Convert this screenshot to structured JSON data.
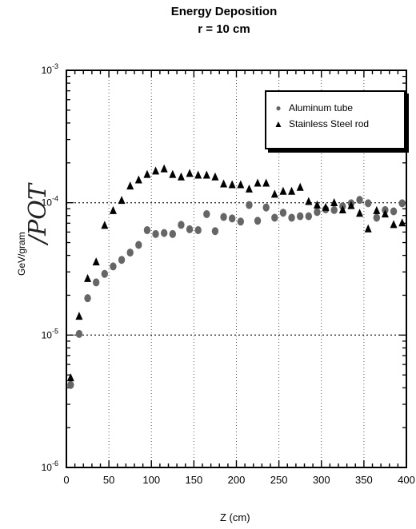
{
  "chart_data": {
    "type": "scatter",
    "title": "Energy Deposition",
    "subtitle": "r = 10 cm",
    "xlabel": "Z (cm)",
    "ylabel": "GeV/gram",
    "annotation": "/POT",
    "xlim": [
      0,
      400
    ],
    "ylim": [
      1e-06,
      0.001
    ],
    "yscale": "log",
    "grid": "dotted",
    "legend_position": "top-right",
    "x_ticks": [
      0,
      50,
      100,
      150,
      200,
      250,
      300,
      350,
      400
    ],
    "x_tick_labels": [
      "0",
      "50",
      "100",
      "150",
      "200",
      "250",
      "300",
      "350",
      "400"
    ],
    "y_ticks": [
      1e-06,
      1e-05,
      0.0001,
      0.001
    ],
    "y_tick_labels": [
      {
        "base": "10",
        "exp": "-6"
      },
      {
        "base": "10",
        "exp": "-5"
      },
      {
        "base": "10",
        "exp": "-4"
      },
      {
        "base": "10",
        "exp": "-3"
      }
    ],
    "series": [
      {
        "name": "Aluminum tube",
        "marker": "circle",
        "color": "#666666",
        "x": [
          5,
          15,
          25,
          35,
          45,
          55,
          65,
          75,
          85,
          95,
          105,
          115,
          125,
          135,
          145,
          155,
          165,
          175,
          185,
          195,
          205,
          215,
          225,
          235,
          245,
          255,
          265,
          275,
          285,
          295,
          305,
          315,
          325,
          335,
          345,
          355,
          365,
          375,
          385,
          395
        ],
        "y": [
          4.2e-06,
          1.02e-05,
          1.9e-05,
          2.5e-05,
          2.9e-05,
          3.3e-05,
          3.7e-05,
          4.2e-05,
          4.8e-05,
          6.2e-05,
          5.8e-05,
          5.9e-05,
          5.8e-05,
          6.8e-05,
          6.3e-05,
          6.2e-05,
          8.2e-05,
          6.1e-05,
          7.8e-05,
          7.6e-05,
          7.2e-05,
          9.6e-05,
          7.3e-05,
          9.2e-05,
          7.7e-05,
          8.4e-05,
          7.7e-05,
          7.9e-05,
          7.9e-05,
          8.5e-05,
          8.9e-05,
          8.8e-05,
          9.4e-05,
          9.9e-05,
          0.000105,
          9.9e-05,
          7.7e-05,
          8.8e-05,
          8.6e-05,
          9.9e-05
        ]
      },
      {
        "name": "Stainless Steel rod",
        "marker": "triangle",
        "color": "#000000",
        "x": [
          5,
          15,
          25,
          35,
          45,
          55,
          65,
          75,
          85,
          95,
          105,
          115,
          125,
          135,
          145,
          155,
          165,
          175,
          185,
          195,
          205,
          215,
          225,
          235,
          245,
          255,
          265,
          275,
          285,
          295,
          305,
          315,
          325,
          335,
          345,
          355,
          365,
          375,
          385,
          395
        ],
        "y": [
          4.8e-06,
          1.4e-05,
          2.7e-05,
          3.6e-05,
          6.8e-05,
          8.8e-05,
          0.000105,
          0.000135,
          0.00015,
          0.000165,
          0.000175,
          0.000182,
          0.000165,
          0.000158,
          0.000168,
          0.000163,
          0.000163,
          0.000158,
          0.00014,
          0.000138,
          0.000138,
          0.000128,
          0.000142,
          0.000142,
          0.000117,
          0.000123,
          0.000123,
          0.000132,
          0.000103,
          9.7e-05,
          9.3e-05,
          0.000101,
          8.9e-05,
          9.6e-05,
          8.4e-05,
          6.4e-05,
          8.8e-05,
          8.3e-05,
          6.9e-05,
          7.1e-05
        ]
      }
    ]
  }
}
